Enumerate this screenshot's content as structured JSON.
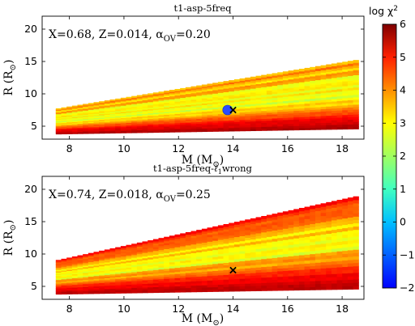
{
  "chart_data": [
    {
      "type": "heatmap",
      "title": "t1-asp-5freq",
      "annotation": {
        "X": "0.68",
        "Z": "0.014",
        "alpha_ov": "0.20"
      },
      "xlabel": "M (M",
      "ylabel": "R (R",
      "xlim": [
        7,
        18.8
      ],
      "ylim": [
        3,
        22
      ],
      "xticks": [
        "8",
        "10",
        "12",
        "14",
        "16",
        "18"
      ],
      "yticks": [
        "5",
        "10",
        "15",
        "20"
      ],
      "grid_range": {
        "M": [
          7.5,
          18.6
        ],
        "R_low_at_Mmin": [
          3.8,
          7.7
        ],
        "R_low_at_Mmax": [
          4.6,
          15.3
        ]
      },
      "best_model_circle": {
        "M": 13.8,
        "R": 7.5
      },
      "marker_x": {
        "M": 14.0,
        "R": 7.5
      },
      "colorscale_by_R_fraction": [
        {
          "frac": 0.0,
          "log_chi2": 5.7
        },
        {
          "frac": 0.15,
          "log_chi2": 5.2
        },
        {
          "frac": 0.3,
          "log_chi2": 4.0
        },
        {
          "frac": 0.45,
          "log_chi2": 2.9
        },
        {
          "frac": 0.6,
          "log_chi2": 3.1
        },
        {
          "frac": 0.75,
          "log_chi2": 3.2
        },
        {
          "frac": 0.9,
          "log_chi2": 3.6
        },
        {
          "frac": 1.0,
          "log_chi2": 3.8
        }
      ]
    },
    {
      "type": "heatmap",
      "title": "t1-asp-5freq-",
      "title_suffix": "wrong",
      "annotation": {
        "X": "0.74",
        "Z": "0.018",
        "alpha_ov": "0.25"
      },
      "xlabel": "M (M",
      "ylabel": "R (R",
      "xlim": [
        7,
        18.8
      ],
      "ylim": [
        3,
        22
      ],
      "xticks": [
        "8",
        "10",
        "12",
        "14",
        "16",
        "18"
      ],
      "yticks": [
        "5",
        "10",
        "15",
        "20"
      ],
      "grid_range": {
        "M": [
          7.5,
          18.6
        ],
        "R_low_at_Mmin": [
          3.8,
          9.0
        ],
        "R_low_at_Mmax": [
          4.6,
          19.0
        ]
      },
      "marker_x": {
        "M": 14.0,
        "R": 7.5
      },
      "colorscale_by_R_fraction": [
        {
          "frac": 0.0,
          "log_chi2": 5.7
        },
        {
          "frac": 0.15,
          "log_chi2": 5.1
        },
        {
          "frac": 0.3,
          "log_chi2": 4.2
        },
        {
          "frac": 0.45,
          "log_chi2": 3.0
        },
        {
          "frac": 0.6,
          "log_chi2": 3.1
        },
        {
          "frac": 0.75,
          "log_chi2": 3.6
        },
        {
          "frac": 0.9,
          "log_chi2": 4.6
        },
        {
          "frac": 1.0,
          "log_chi2": 5.4
        }
      ]
    }
  ],
  "colorbar": {
    "label": "log χ",
    "label_sup": "2",
    "range": [
      -2,
      6
    ],
    "ticks": [
      "6",
      "5",
      "4",
      "3",
      "2",
      "1",
      "0",
      "−1",
      "−2"
    ],
    "colormap": "jet"
  },
  "labels": {
    "sun_symbol": "⊙",
    "ell": "ℓ",
    "sub1": "1",
    "x_marker": "✕"
  }
}
